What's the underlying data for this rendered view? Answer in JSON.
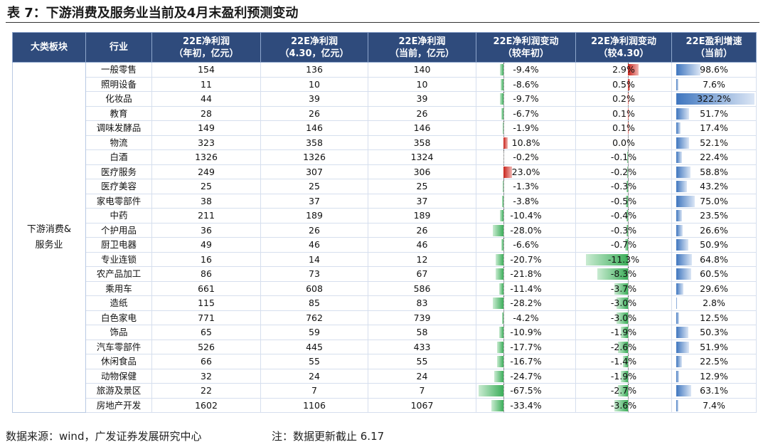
{
  "title": "表 7：下游消费及服务业当前及4月末盈利预测变动",
  "table": {
    "headers": [
      [
        "大类板块"
      ],
      [
        "行业"
      ],
      [
        "22E净利润",
        "（年初，亿元）"
      ],
      [
        "22E净利润",
        "（4.30，亿元）"
      ],
      [
        "22E净利润",
        "（当前，亿元）"
      ],
      [
        "22E净利润变动",
        "（较年初）"
      ],
      [
        "22E净利润变动",
        "（较4.30）"
      ],
      [
        "22E盈利增速",
        "（当前）"
      ]
    ],
    "group": "下游消费&服务业",
    "rows": [
      [
        "一般零售",
        154,
        136,
        140,
        {
          "value": -9.4,
          "label": "-9.4%"
        },
        {
          "value": 2.9,
          "label": "2.9%"
        },
        {
          "value": 98.6,
          "label": "98.6%"
        }
      ],
      [
        "照明设备",
        11,
        10,
        10,
        {
          "value": -8.6,
          "label": "-8.6%"
        },
        {
          "value": 0.5,
          "label": "0.5%"
        },
        {
          "value": 7.6,
          "label": "7.6%"
        }
      ],
      [
        "化妆品",
        44,
        39,
        39,
        {
          "value": -9.7,
          "label": "-9.7%"
        },
        {
          "value": 0.2,
          "label": "0.2%"
        },
        {
          "value": 322.2,
          "label": "322.2%"
        }
      ],
      [
        "教育",
        28,
        26,
        26,
        {
          "value": -6.7,
          "label": "-6.7%"
        },
        {
          "value": 0.1,
          "label": "0.1%"
        },
        {
          "value": 51.7,
          "label": "51.7%"
        }
      ],
      [
        "调味发酵品",
        149,
        146,
        146,
        {
          "value": -1.9,
          "label": "-1.9%"
        },
        {
          "value": 0.1,
          "label": "0.1%"
        },
        {
          "value": 17.4,
          "label": "17.4%"
        }
      ],
      [
        "物流",
        323,
        358,
        358,
        {
          "value": 10.8,
          "label": "10.8%"
        },
        {
          "value": 0,
          "label": "0.0%"
        },
        {
          "value": 52.1,
          "label": "52.1%"
        }
      ],
      [
        "白酒",
        1326,
        1326,
        1324,
        {
          "value": -0.2,
          "label": "-0.2%"
        },
        {
          "value": -0.1,
          "label": "-0.1%"
        },
        {
          "value": 22.4,
          "label": "22.4%"
        }
      ],
      [
        "医疗服务",
        249,
        307,
        306,
        {
          "value": 23.0,
          "label": "23.0%"
        },
        {
          "value": -0.2,
          "label": "-0.2%"
        },
        {
          "value": 58.8,
          "label": "58.8%"
        }
      ],
      [
        "医疗美容",
        25,
        25,
        25,
        {
          "value": -1.3,
          "label": "-1.3%"
        },
        {
          "value": -0.3,
          "label": "-0.3%"
        },
        {
          "value": 43.2,
          "label": "43.2%"
        }
      ],
      [
        "家电零部件",
        38,
        37,
        37,
        {
          "value": -3.8,
          "label": "-3.8%"
        },
        {
          "value": -0.5,
          "label": "-0.5%"
        },
        {
          "value": 75.0,
          "label": "75.0%"
        }
      ],
      [
        "中药",
        211,
        189,
        189,
        {
          "value": -10.4,
          "label": "-10.4%"
        },
        {
          "value": -0.4,
          "label": "-0.4%"
        },
        {
          "value": 23.5,
          "label": "23.5%"
        }
      ],
      [
        "个护用品",
        36,
        26,
        26,
        {
          "value": -28.0,
          "label": "-28.0%"
        },
        {
          "value": -0.3,
          "label": "-0.3%"
        },
        {
          "value": 26.6,
          "label": "26.6%"
        }
      ],
      [
        "厨卫电器",
        49,
        46,
        46,
        {
          "value": -6.6,
          "label": "-6.6%"
        },
        {
          "value": -0.7,
          "label": "-0.7%"
        },
        {
          "value": 50.9,
          "label": "50.9%"
        }
      ],
      [
        "专业连锁",
        16,
        14,
        12,
        {
          "value": -20.7,
          "label": "-20.7%"
        },
        {
          "value": -11.3,
          "label": "-11.3%"
        },
        {
          "value": 64.8,
          "label": "64.8%"
        }
      ],
      [
        "农产品加工",
        86,
        73,
        67,
        {
          "value": -21.8,
          "label": "-21.8%"
        },
        {
          "value": -8.3,
          "label": "-8.3%"
        },
        {
          "value": 60.5,
          "label": "60.5%"
        }
      ],
      [
        "乘用车",
        661,
        608,
        586,
        {
          "value": -11.4,
          "label": "-11.4%"
        },
        {
          "value": -3.7,
          "label": "-3.7%"
        },
        {
          "value": 29.6,
          "label": "29.6%"
        }
      ],
      [
        "造纸",
        115,
        85,
        83,
        {
          "value": -28.2,
          "label": "-28.2%"
        },
        {
          "value": -3.0,
          "label": "-3.0%"
        },
        {
          "value": 2.8,
          "label": "2.8%"
        }
      ],
      [
        "白色家电",
        771,
        762,
        739,
        {
          "value": -4.2,
          "label": "-4.2%"
        },
        {
          "value": -3.0,
          "label": "-3.0%"
        },
        {
          "value": 12.5,
          "label": "12.5%"
        }
      ],
      [
        "饰品",
        65,
        59,
        58,
        {
          "value": -10.9,
          "label": "-10.9%"
        },
        {
          "value": -1.9,
          "label": "-1.9%"
        },
        {
          "value": 50.3,
          "label": "50.3%"
        }
      ],
      [
        "汽车零部件",
        526,
        445,
        433,
        {
          "value": -17.7,
          "label": "-17.7%"
        },
        {
          "value": -2.6,
          "label": "-2.6%"
        },
        {
          "value": 51.9,
          "label": "51.9%"
        }
      ],
      [
        "休闲食品",
        66,
        55,
        55,
        {
          "value": -16.7,
          "label": "-16.7%"
        },
        {
          "value": -1.4,
          "label": "-1.4%"
        },
        {
          "value": 22.5,
          "label": "22.5%"
        }
      ],
      [
        "动物保健",
        32,
        24,
        24,
        {
          "value": -24.7,
          "label": "-24.7%"
        },
        {
          "value": -1.9,
          "label": "-1.9%"
        },
        {
          "value": 12.9,
          "label": "12.9%"
        }
      ],
      [
        "旅游及景区",
        22,
        7,
        7,
        {
          "value": -67.5,
          "label": "-67.5%"
        },
        {
          "value": -2.7,
          "label": "-2.7%"
        },
        {
          "value": 63.1,
          "label": "63.1%"
        }
      ],
      [
        "房地产开发",
        1602,
        1106,
        1067,
        {
          "value": -33.4,
          "label": "-33.4%"
        },
        {
          "value": -3.6,
          "label": "-3.6%"
        },
        {
          "value": 7.4,
          "label": "7.4%"
        }
      ]
    ]
  },
  "footer": {
    "source": "数据来源：wind，广发证券发展研究中心",
    "note": "注：数据更新截止 6.17"
  }
}
